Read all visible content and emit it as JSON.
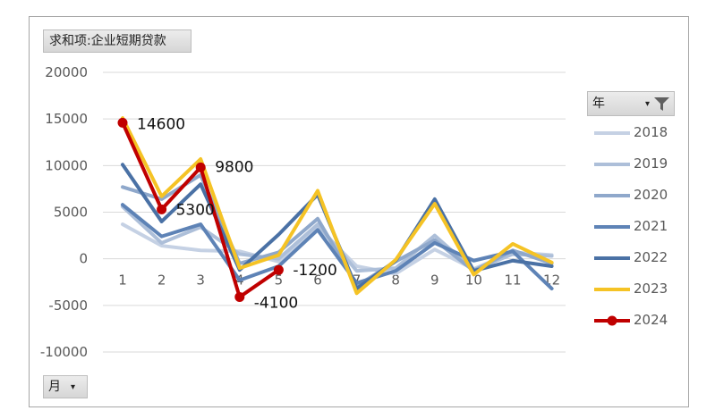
{
  "field_buttons": {
    "value_field": "求和项:企业短期贷款",
    "legend_field": "年",
    "axis_field": "月"
  },
  "icons": {
    "legend_dropdown": "dropdown-arrow-icon",
    "legend_filter": "filter-icon",
    "axis_dropdown": "dropdown-arrow-icon"
  },
  "chart_data": {
    "type": "line",
    "title": "",
    "xlabel": "",
    "ylabel": "",
    "categories": [
      "1",
      "2",
      "3",
      "4",
      "5",
      "6",
      "7",
      "8",
      "9",
      "10",
      "11",
      "12"
    ],
    "ylim": [
      -10000,
      20000
    ],
    "yticks": [
      20000,
      15000,
      10000,
      5000,
      0,
      -5000,
      -10000
    ],
    "grid": true,
    "legend_position": "right",
    "series": [
      {
        "name": "2018",
        "color": "#c5d1e4",
        "width": 4,
        "values": [
          3700,
          1400,
          900,
          800,
          -300,
          3400,
          -800,
          -1600,
          1000,
          -1100,
          700,
          400
        ]
      },
      {
        "name": "2019",
        "color": "#adbfd9",
        "width": 4,
        "values": [
          5600,
          1700,
          3400,
          500,
          0,
          3700,
          -1300,
          -1000,
          2500,
          -1200,
          500,
          300
        ]
      },
      {
        "name": "2020",
        "color": "#8fa8cb",
        "width": 4,
        "values": [
          7700,
          6400,
          9000,
          -500,
          700,
          4300,
          -2900,
          -300,
          2000,
          -1300,
          900,
          -500
        ]
      },
      {
        "name": "2021",
        "color": "#5e83b6",
        "width": 4,
        "values": [
          5800,
          2400,
          3700,
          -2300,
          -800,
          3100,
          -2600,
          -1300,
          1700,
          -200,
          800,
          -3200
        ]
      },
      {
        "name": "2022",
        "color": "#4a71a5",
        "width": 4,
        "values": [
          10100,
          4000,
          8000,
          -1200,
          2600,
          6900,
          -3200,
          -200,
          6400,
          -1300,
          -200,
          -800
        ]
      },
      {
        "name": "2023",
        "color": "#f5c325",
        "width": 4,
        "values": [
          15100,
          6700,
          10700,
          -1000,
          400,
          7300,
          -3700,
          -100,
          5900,
          -1700,
          1600,
          -400
        ]
      },
      {
        "name": "2024",
        "color": "#c00000",
        "width": 4,
        "markers": true,
        "values": [
          14600,
          5300,
          9800,
          -4100,
          -1200,
          null,
          null,
          null,
          null,
          null,
          null,
          null
        ]
      }
    ],
    "data_labels": [
      {
        "series": "2024",
        "index": 0,
        "text": "14600"
      },
      {
        "series": "2024",
        "index": 1,
        "text": "5300"
      },
      {
        "series": "2024",
        "index": 2,
        "text": "9800"
      },
      {
        "series": "2024",
        "index": 3,
        "text": "-4100"
      },
      {
        "series": "2024",
        "index": 4,
        "text": "-1200"
      }
    ]
  }
}
